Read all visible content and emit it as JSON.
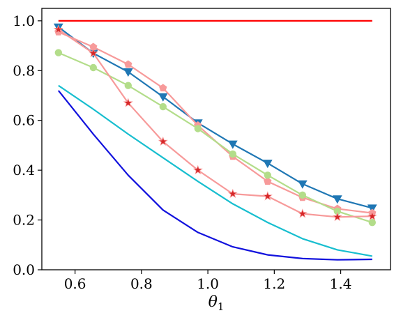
{
  "chart_data": {
    "type": "line",
    "xlabel": "θ1",
    "xlabel_main": "θ",
    "xlabel_sub": "1",
    "ylabel": "",
    "xlim": [
      0.5,
      1.55
    ],
    "ylim": [
      0.0,
      1.05
    ],
    "xticks": [
      0.6,
      0.8,
      1.0,
      1.2,
      1.4
    ],
    "xtick_labels": [
      "0.6",
      "0.8",
      "1.0",
      "1.2",
      "1.4"
    ],
    "yticks": [
      0.0,
      0.2,
      0.4,
      0.6,
      0.8,
      1.0
    ],
    "ytick_labels": [
      "0.0",
      "0.2",
      "0.4",
      "0.6",
      "0.8",
      "1.0"
    ],
    "grid": false,
    "legend": "none",
    "x": [
      0.55,
      0.655,
      0.76,
      0.865,
      0.97,
      1.075,
      1.18,
      1.285,
      1.39,
      1.495
    ],
    "series": [
      {
        "color": "#ff0000",
        "marker": "none",
        "values": [
          1.0,
          1.0,
          1.0,
          1.0,
          1.0,
          1.0,
          1.0,
          1.0,
          1.0,
          1.0
        ]
      },
      {
        "color": "#1f77b4",
        "marker": "triangle-down",
        "values": [
          0.975,
          0.87,
          0.795,
          0.695,
          0.59,
          0.505,
          0.428,
          0.345,
          0.285,
          0.248
        ]
      },
      {
        "color": "#f79a9a",
        "marker": "pentagon",
        "values": [
          0.955,
          0.895,
          0.825,
          0.73,
          0.58,
          0.455,
          0.355,
          0.29,
          0.245,
          0.228
        ]
      },
      {
        "color": "#b3dd8a",
        "marker": "circle",
        "values": [
          0.872,
          0.812,
          0.74,
          0.655,
          0.567,
          0.465,
          0.38,
          0.3,
          0.235,
          0.19
        ]
      },
      {
        "color": "#f79a9a",
        "marker": "star",
        "values": [
          0.965,
          0.87,
          0.67,
          0.515,
          0.4,
          0.305,
          0.295,
          0.225,
          0.212,
          0.215
        ]
      },
      {
        "color": "#17becf",
        "marker": "none",
        "values": [
          0.74,
          0.645,
          0.545,
          0.45,
          0.355,
          0.265,
          0.19,
          0.125,
          0.08,
          0.055
        ]
      },
      {
        "color": "#1111dd",
        "marker": "none",
        "values": [
          0.72,
          0.545,
          0.38,
          0.24,
          0.15,
          0.092,
          0.06,
          0.045,
          0.04,
          0.042
        ]
      }
    ]
  }
}
